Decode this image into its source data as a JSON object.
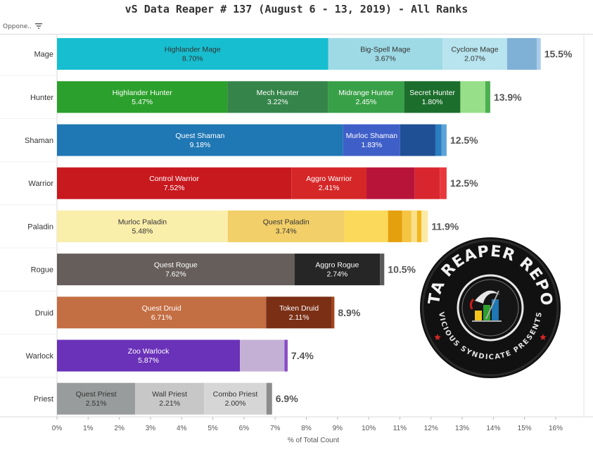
{
  "title": "vS Data Reaper # 137 (August 6 - 13, 2019) - All Ranks",
  "filter_label": "Oppone..",
  "logo": {
    "top_text": "DATA REAPER REPORT",
    "bottom_text": "VICIOUS SYNDICATE PRESENTS"
  },
  "chart_data": {
    "type": "bar",
    "orientation": "horizontal",
    "stacked": true,
    "xlabel": "% of Total Count",
    "xlim": [
      0,
      16
    ],
    "x_ticks": [
      "0%",
      "1%",
      "2%",
      "3%",
      "4%",
      "5%",
      "6%",
      "7%",
      "8%",
      "9%",
      "10%",
      "11%",
      "12%",
      "13%",
      "14%",
      "15%",
      "16%"
    ],
    "grid": false,
    "categories": [
      "Mage",
      "Hunter",
      "Shaman",
      "Warrior",
      "Paladin",
      "Rogue",
      "Druid",
      "Warlock",
      "Priest"
    ],
    "totals": [
      "15.5%",
      "13.9%",
      "12.5%",
      "12.5%",
      "11.9%",
      "10.5%",
      "8.9%",
      "7.4%",
      "6.9%"
    ],
    "rows": [
      {
        "category": "Mage",
        "segments": [
          {
            "name": "Highlander Mage",
            "value": 8.7,
            "label": "8.70%",
            "color": "#17becf",
            "text_color": "#333333"
          },
          {
            "name": "Big-Spell Mage",
            "value": 3.67,
            "label": "3.67%",
            "color": "#9edae5",
            "text_color": "#333333"
          },
          {
            "name": "Cyclone Mage",
            "value": 2.07,
            "label": "2.07%",
            "color": "#b7e4ee",
            "text_color": "#333333"
          },
          {
            "name": "",
            "value": 0.95,
            "label": "",
            "color": "#7fb0d6"
          },
          {
            "name": "",
            "value": 0.13,
            "label": "",
            "color": "#a9cde9"
          }
        ]
      },
      {
        "category": "Hunter",
        "segments": [
          {
            "name": "Highlander Hunter",
            "value": 5.47,
            "label": "5.47%",
            "color": "#2ca02c",
            "text_color": "#ffffff"
          },
          {
            "name": "Mech Hunter",
            "value": 3.22,
            "label": "3.22%",
            "color": "#35854a",
            "text_color": "#ffffff"
          },
          {
            "name": "Midrange Hunter",
            "value": 2.45,
            "label": "2.45%",
            "color": "#38a047",
            "text_color": "#ffffff"
          },
          {
            "name": "Secret Hunter",
            "value": 1.8,
            "label": "1.80%",
            "color": "#1c6e2c",
            "text_color": "#ffffff"
          },
          {
            "name": "",
            "value": 0.8,
            "label": "",
            "color": "#98df8a"
          },
          {
            "name": "",
            "value": 0.16,
            "label": "",
            "color": "#4caf50"
          }
        ]
      },
      {
        "category": "Shaman",
        "segments": [
          {
            "name": "Quest Shaman",
            "value": 9.18,
            "label": "9.18%",
            "color": "#1f77b4",
            "text_color": "#ffffff"
          },
          {
            "name": "Murloc Shaman",
            "value": 1.83,
            "label": "1.83%",
            "color": "#3f5fc8",
            "text_color": "#ffffff"
          },
          {
            "name": "",
            "value": 1.13,
            "label": "",
            "color": "#1f4f95"
          },
          {
            "name": "",
            "value": 0.2,
            "label": "",
            "color": "#2a7dc0"
          },
          {
            "name": "",
            "value": 0.16,
            "label": "",
            "color": "#5da3d8"
          }
        ]
      },
      {
        "category": "Warrior",
        "segments": [
          {
            "name": "Control Warrior",
            "value": 7.52,
            "label": "7.52%",
            "color": "#c8191f",
            "text_color": "#ffffff"
          },
          {
            "name": "Aggro Warrior",
            "value": 2.41,
            "label": "2.41%",
            "color": "#d62728",
            "text_color": "#ffffff"
          },
          {
            "name": "",
            "value": 1.55,
            "label": "",
            "color": "#b8143a"
          },
          {
            "name": "",
            "value": 0.8,
            "label": "",
            "color": "#d9262e"
          },
          {
            "name": "",
            "value": 0.22,
            "label": "",
            "color": "#e8383d"
          }
        ]
      },
      {
        "category": "Paladin",
        "segments": [
          {
            "name": "Murloc Paladin",
            "value": 5.48,
            "label": "5.48%",
            "color": "#faeeab",
            "text_color": "#333333"
          },
          {
            "name": "Quest Paladin",
            "value": 3.74,
            "label": "3.74%",
            "color": "#f2cf68",
            "text_color": "#333333"
          },
          {
            "name": "",
            "value": 1.4,
            "label": "",
            "color": "#fbd95a"
          },
          {
            "name": "",
            "value": 0.45,
            "label": "",
            "color": "#e5a00e"
          },
          {
            "name": "",
            "value": 0.3,
            "label": "",
            "color": "#f5c542"
          },
          {
            "name": "",
            "value": 0.18,
            "label": "",
            "color": "#f9e089"
          },
          {
            "name": "",
            "value": 0.14,
            "label": "",
            "color": "#f3b61f"
          },
          {
            "name": "",
            "value": 0.21,
            "label": "",
            "color": "#fbeaa6"
          }
        ]
      },
      {
        "category": "Rogue",
        "segments": [
          {
            "name": "Quest Rogue",
            "value": 7.62,
            "label": "7.62%",
            "color": "#665e5a",
            "text_color": "#ffffff"
          },
          {
            "name": "Aggro Rogue",
            "value": 2.74,
            "label": "2.74%",
            "color": "#262626",
            "text_color": "#ffffff"
          },
          {
            "name": "",
            "value": 0.14,
            "label": "",
            "color": "#5a5a5a"
          }
        ]
      },
      {
        "category": "Druid",
        "segments": [
          {
            "name": "Quest Druid",
            "value": 6.71,
            "label": "6.71%",
            "color": "#c46e43",
            "text_color": "#ffffff"
          },
          {
            "name": "Token Druid",
            "value": 2.11,
            "label": "2.11%",
            "color": "#7b3016",
            "text_color": "#ffffff"
          },
          {
            "name": "",
            "value": 0.08,
            "label": "",
            "color": "#a8441c"
          }
        ]
      },
      {
        "category": "Warlock",
        "segments": [
          {
            "name": "Zoo Warlock",
            "value": 5.87,
            "label": "5.87%",
            "color": "#6a32b8",
            "text_color": "#ffffff"
          },
          {
            "name": "",
            "value": 1.43,
            "label": "",
            "color": "#c5b0d5"
          },
          {
            "name": "",
            "value": 0.1,
            "label": "",
            "color": "#8a4bc4"
          }
        ]
      },
      {
        "category": "Priest",
        "segments": [
          {
            "name": "Quest Priest",
            "value": 2.51,
            "label": "2.51%",
            "color": "#999c9c",
            "text_color": "#333333"
          },
          {
            "name": "Wall Priest",
            "value": 2.21,
            "label": "2.21%",
            "color": "#c7c7c7",
            "text_color": "#333333"
          },
          {
            "name": "Combo Priest",
            "value": 2.0,
            "label": "2.00%",
            "color": "#d6d6d6",
            "text_color": "#333333"
          },
          {
            "name": "",
            "value": 0.18,
            "label": "",
            "color": "#8c8c8c"
          }
        ]
      }
    ]
  }
}
